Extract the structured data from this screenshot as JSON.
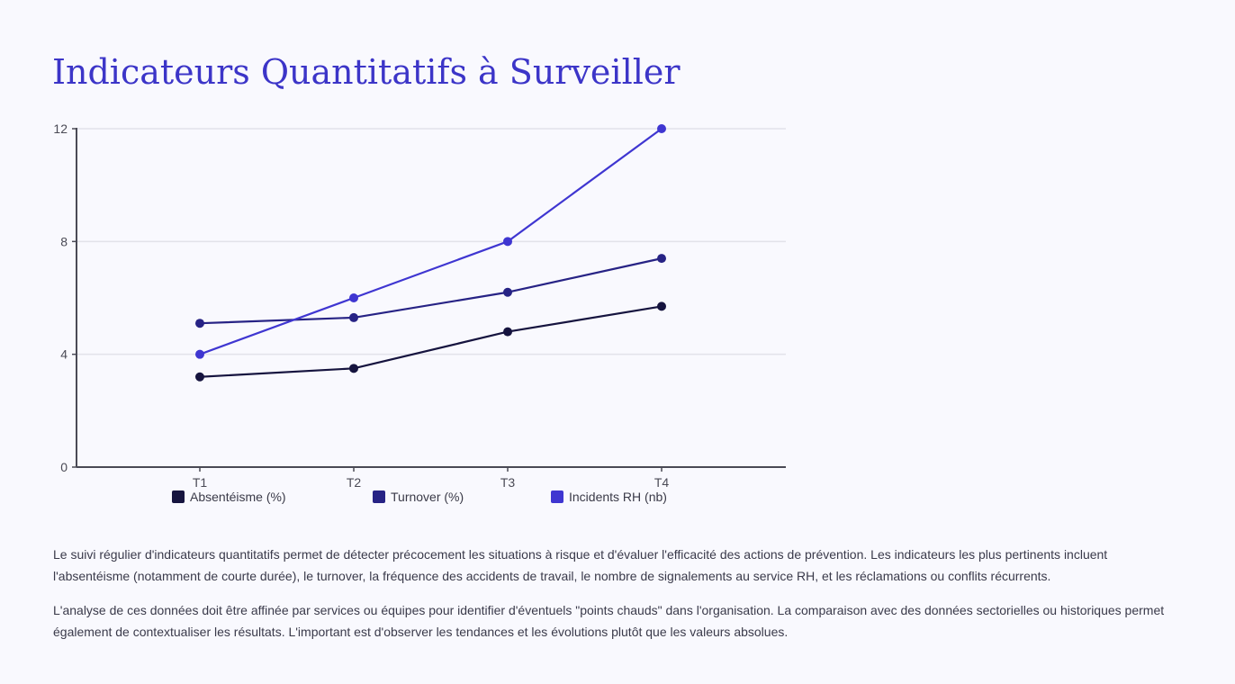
{
  "page": {
    "title": "Indicateurs Quantitatifs à Surveiller",
    "paragraphs": [
      "Le suivi régulier d'indicateurs quantitatifs permet de détecter précocement les situations à risque et d'évaluer l'efficacité des actions de prévention. Les indicateurs les plus pertinents incluent l'absentéisme (notamment de courte durée), le turnover, la fréquence des accidents de travail, le nombre de signalements au service RH, et les réclamations ou conflits récurrents.",
      "L'analyse de ces données doit être affinée par services ou équipes pour identifier d'éventuels \"points chauds\" dans l'organisation. La comparaison avec des données sectorielles ou historiques permet également de contextualiser les résultats. L'important est d'observer les tendances et les évolutions plutôt que les valeurs absolues."
    ]
  },
  "chart_data": {
    "type": "line",
    "categories": [
      "T1",
      "T2",
      "T3",
      "T4"
    ],
    "series": [
      {
        "name": "Absentéisme (%)",
        "values": [
          3.2,
          3.5,
          4.8,
          5.7
        ],
        "color": "#16143f"
      },
      {
        "name": "Turnover (%)",
        "values": [
          5.1,
          5.3,
          6.2,
          7.4
        ],
        "color": "#272385"
      },
      {
        "name": "Incidents RH (nb)",
        "values": [
          4,
          6,
          8,
          12
        ],
        "color": "#3f36d1"
      }
    ],
    "ylim": [
      0,
      12
    ],
    "yticks": [
      0,
      4,
      8,
      12
    ],
    "grid": true,
    "legend": "bottom",
    "axis_color": "#4a4a55",
    "grid_color": "#e2e2ea"
  }
}
